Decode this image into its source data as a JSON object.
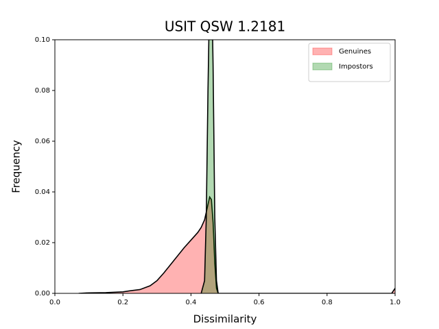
{
  "chart_data": {
    "type": "area",
    "title": "USIT QSW 1.2181",
    "x_label": "Dissimilarity",
    "y_label": "Frequency",
    "xlim": [
      0,
      1
    ],
    "ylim": [
      0,
      0.1
    ],
    "xticks": [
      {
        "value": 0,
        "label": "0.0"
      },
      {
        "value": 0.2,
        "label": "0.2"
      },
      {
        "value": 0.4,
        "label": "0.4"
      },
      {
        "value": 0.6,
        "label": "0.6"
      },
      {
        "value": 0.8,
        "label": "0.8"
      },
      {
        "value": 1,
        "label": "1.0"
      }
    ],
    "yticks": [
      {
        "value": 0,
        "label": "0.00"
      },
      {
        "value": 0.02,
        "label": "0.02"
      },
      {
        "value": 0.04,
        "label": "0.04"
      },
      {
        "value": 0.06,
        "label": "0.06"
      },
      {
        "value": 0.08,
        "label": "0.08"
      },
      {
        "value": 0.1,
        "label": "0.10"
      }
    ],
    "grid": false,
    "legend": "upper right",
    "series": [
      {
        "name": "Genuines",
        "color": "#ff0000",
        "x": [
          0.07,
          0.1,
          0.15,
          0.2,
          0.22,
          0.25,
          0.28,
          0.3,
          0.32,
          0.35,
          0.38,
          0.4,
          0.42,
          0.43,
          0.44,
          0.45,
          0.455,
          0.46,
          0.465,
          0.47,
          0.475,
          0.48,
          0.5,
          0.6,
          0.8,
          0.99,
          1.0
        ],
        "values": [
          0,
          0.0002,
          0.0003,
          0.0006,
          0.001,
          0.0015,
          0.003,
          0.005,
          0.008,
          0.013,
          0.018,
          0.021,
          0.024,
          0.026,
          0.029,
          0.035,
          0.038,
          0.037,
          0.028,
          0.012,
          0.002,
          0,
          0,
          0,
          0,
          0,
          0.002
        ]
      },
      {
        "name": "Impostors",
        "color": "#008000",
        "x": [
          0.43,
          0.44,
          0.445,
          0.45,
          0.455,
          0.46,
          0.465,
          0.47,
          0.475,
          0.48
        ],
        "values": [
          0,
          0.005,
          0.03,
          0.08,
          0.12,
          0.13,
          0.09,
          0.03,
          0.005,
          0
        ]
      }
    ]
  }
}
